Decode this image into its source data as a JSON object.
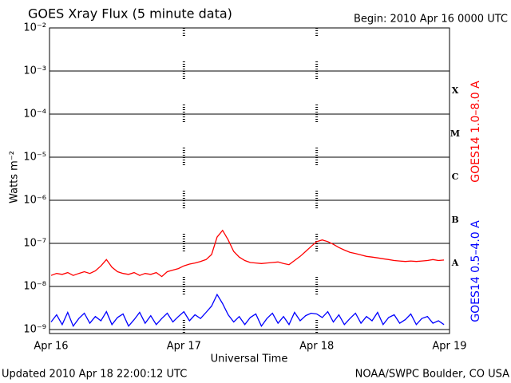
{
  "chart_data": {
    "type": "line",
    "title": "GOES Xray Flux (5 minute data)",
    "subtitle": "Begin:  2010 Apr 16 0000 UTC",
    "x_label": "Universal Time",
    "y_label": "Watts m⁻²",
    "footer_left": "Updated 2010 Apr 18 22:00:12 UTC",
    "footer_right": "NOAA/SWPC Boulder, CO USA",
    "flare_classes": [
      "A",
      "B",
      "C",
      "M",
      "X"
    ],
    "log_y": true,
    "grid": true,
    "xlim": [
      0,
      72
    ],
    "xticks": [
      {
        "value": 0,
        "label": "Apr 16"
      },
      {
        "value": 24,
        "label": "Apr 17"
      },
      {
        "value": 48,
        "label": "Apr 18"
      },
      {
        "value": 72,
        "label": "Apr 19"
      }
    ],
    "ylim": [
      1e-09,
      0.01
    ],
    "yticks": [
      {
        "value": 1e-09,
        "label": "10⁻⁹"
      },
      {
        "value": 1e-08,
        "label": "10⁻⁸"
      },
      {
        "value": 1e-07,
        "label": "10⁻⁷"
      },
      {
        "value": 1e-06,
        "label": "10⁻⁶"
      },
      {
        "value": 1e-05,
        "label": "10⁻⁵"
      },
      {
        "value": 0.0001,
        "label": "10⁻⁴"
      },
      {
        "value": 0.001,
        "label": "10⁻³"
      },
      {
        "value": 0.01,
        "label": "10⁻²"
      }
    ],
    "x": [
      0,
      1,
      2,
      3,
      4,
      5,
      6,
      7,
      8,
      9,
      10,
      11,
      12,
      13,
      14,
      15,
      16,
      17,
      18,
      19,
      20,
      21,
      22,
      23,
      24,
      25,
      26,
      27,
      28,
      29,
      30,
      31,
      32,
      33,
      34,
      35,
      36,
      37,
      38,
      39,
      40,
      41,
      42,
      43,
      44,
      45,
      46,
      47,
      48,
      49,
      50,
      51,
      52,
      53,
      54,
      55,
      56,
      57,
      58,
      59,
      60,
      61,
      62,
      63,
      64,
      65,
      66,
      67,
      68,
      69,
      70,
      71
    ],
    "series": [
      {
        "name": "GOES14 1.0–8.0 A",
        "color": "#ff0000",
        "values": [
          1.8e-08,
          2e-08,
          1.9e-08,
          2.1e-08,
          1.8e-08,
          2e-08,
          2.2e-08,
          2e-08,
          2.3e-08,
          3e-08,
          4.2e-08,
          2.8e-08,
          2.2e-08,
          2e-08,
          1.9e-08,
          2.1e-08,
          1.8e-08,
          2e-08,
          1.9e-08,
          2.1e-08,
          1.7e-08,
          2.2e-08,
          2.4e-08,
          2.6e-08,
          3e-08,
          3.3e-08,
          3.5e-08,
          3.8e-08,
          4.2e-08,
          5.5e-08,
          1.4e-07,
          2e-07,
          1.2e-07,
          6.5e-08,
          4.8e-08,
          4e-08,
          3.6e-08,
          3.5e-08,
          3.4e-08,
          3.5e-08,
          3.6e-08,
          3.7e-08,
          3.4e-08,
          3.2e-08,
          4e-08,
          5e-08,
          6.5e-08,
          8.5e-08,
          1.1e-07,
          1.2e-07,
          1.1e-07,
          9.5e-08,
          8e-08,
          7e-08,
          6.2e-08,
          5.8e-08,
          5.4e-08,
          5e-08,
          4.8e-08,
          4.6e-08,
          4.4e-08,
          4.2e-08,
          4e-08,
          3.9e-08,
          3.8e-08,
          3.9e-08,
          3.8e-08,
          3.9e-08,
          4e-08,
          4.2e-08,
          4e-08,
          4.1e-08
        ]
      },
      {
        "name": "GOES14 0.5–4.0 A",
        "color": "#0000ff",
        "values": [
          1.5e-09,
          2.2e-09,
          1.3e-09,
          2.5e-09,
          1.2e-09,
          1.8e-09,
          2.4e-09,
          1.4e-09,
          2e-09,
          1.6e-09,
          2.6e-09,
          1.3e-09,
          1.9e-09,
          2.3e-09,
          1.2e-09,
          1.7e-09,
          2.5e-09,
          1.4e-09,
          2.1e-09,
          1.3e-09,
          1.8e-09,
          2.4e-09,
          1.5e-09,
          2e-09,
          2.6e-09,
          1.6e-09,
          2.2e-09,
          1.8e-09,
          2.5e-09,
          3.5e-09,
          6.5e-09,
          4e-09,
          2.2e-09,
          1.5e-09,
          2e-09,
          1.3e-09,
          1.9e-09,
          2.3e-09,
          1.2e-09,
          1.8e-09,
          2.4e-09,
          1.4e-09,
          2e-09,
          1.3e-09,
          2.5e-09,
          1.6e-09,
          2.1e-09,
          2.4e-09,
          2.3e-09,
          1.9e-09,
          2.6e-09,
          1.5e-09,
          2.2e-09,
          1.3e-09,
          1.8e-09,
          2.4e-09,
          1.4e-09,
          2e-09,
          1.6e-09,
          2.5e-09,
          1.3e-09,
          1.9e-09,
          2.2e-09,
          1.4e-09,
          1.7e-09,
          2.3e-09,
          1.3e-09,
          1.8e-09,
          2e-09,
          1.4e-09,
          1.6e-09,
          1.3e-09
        ]
      }
    ]
  }
}
